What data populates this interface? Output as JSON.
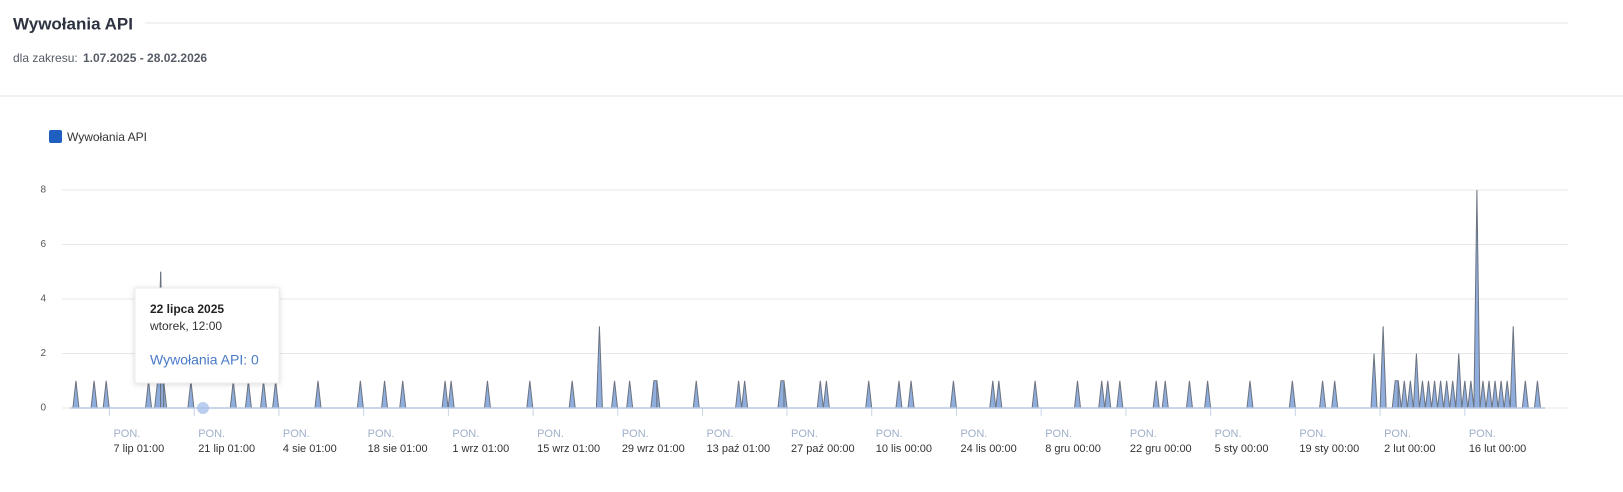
{
  "header": {
    "title": "Wywołania API",
    "range_label": "dla zakresu:",
    "range": "1.07.2025 - 28.02.2026"
  },
  "chart_data": {
    "type": "area",
    "x": [
      "2025-07-01T12:00",
      "2025-07-04T12:00",
      "2025-07-06T12:00",
      "2025-07-13T12:00",
      "2025-07-15T00:00",
      "2025-07-15T12:00",
      "2025-07-16T00:00",
      "2025-07-20T12:00",
      "2025-07-27T12:00",
      "2025-07-30T00:00",
      "2025-08-01T12:00",
      "2025-08-03T12:00",
      "2025-08-10T12:00",
      "2025-08-17T12:00",
      "2025-08-21T12:00",
      "2025-08-24T12:00",
      "2025-08-31T12:00",
      "2025-09-01T12:00",
      "2025-09-07T12:00",
      "2025-09-14T12:00",
      "2025-09-21T12:00",
      "2025-09-26T00:00",
      "2025-09-28T12:00",
      "2025-10-01T00:00",
      "2025-10-05T00:00",
      "2025-10-05T12:00",
      "2025-10-12T00:00",
      "2025-10-19T00:00",
      "2025-10-20T00:00",
      "2025-10-26T00:00",
      "2025-10-26T12:00",
      "2025-11-01T12:00",
      "2025-11-02T12:00",
      "2025-11-09T12:00",
      "2025-11-14T12:00",
      "2025-11-16T12:00",
      "2025-11-23T12:00",
      "2025-11-30T00:00",
      "2025-12-01T00:00",
      "2025-12-07T00:00",
      "2025-12-14T00:00",
      "2025-12-18T00:00",
      "2025-12-19T00:00",
      "2025-12-21T00:00",
      "2025-12-27T00:00",
      "2025-12-28T12:00",
      "2026-01-01T12:00",
      "2026-01-04T12:00",
      "2026-01-11T12:00",
      "2026-01-18T12:00",
      "2026-01-23T12:00",
      "2026-01-25T12:00",
      "2026-02-01T00:00",
      "2026-02-02T12:00",
      "2026-02-04T12:00",
      "2026-02-05T00:00",
      "2026-02-06T00:00",
      "2026-02-07T00:00",
      "2026-02-08T00:00",
      "2026-02-09T00:00",
      "2026-02-10T00:00",
      "2026-02-11T00:00",
      "2026-02-12T00:00",
      "2026-02-13T00:00",
      "2026-02-14T00:00",
      "2026-02-15T00:00",
      "2026-02-16T00:00",
      "2026-02-17T00:00",
      "2026-02-18T00:00",
      "2026-02-19T00:00",
      "2026-02-20T00:00",
      "2026-02-21T00:00",
      "2026-02-22T00:00",
      "2026-02-23T00:00",
      "2026-02-24T00:00",
      "2026-02-26T00:00",
      "2026-02-28T00:00"
    ],
    "series": [
      {
        "name": "Wywołania API",
        "color": "#1f5fbf",
        "fill": "#8aaadb",
        "line": "#6b7380",
        "values": [
          1,
          1,
          1,
          1,
          1,
          5,
          1,
          1,
          1,
          1,
          1,
          1,
          1,
          1,
          1,
          1,
          1,
          1,
          1,
          1,
          1,
          3,
          1,
          1,
          1,
          1,
          1,
          1,
          1,
          1,
          1,
          1,
          1,
          1,
          1,
          1,
          1,
          1,
          1,
          1,
          1,
          1,
          1,
          1,
          1,
          1,
          1,
          1,
          1,
          1,
          1,
          1,
          2,
          3,
          1,
          1,
          1,
          1,
          2,
          1,
          1,
          1,
          1,
          1,
          1,
          2,
          1,
          1,
          8,
          1,
          1,
          1,
          1,
          1,
          3,
          1,
          1
        ]
      }
    ],
    "xlim": [
      "2025-07-01T00:00",
      "2026-03-01T06:00"
    ],
    "xticks": [
      {
        "value": "2025-07-07T01:00",
        "label": "7 lip 01:00"
      },
      {
        "value": "2025-07-21T01:00",
        "label": "21 lip 01:00"
      },
      {
        "value": "2025-08-04T01:00",
        "label": "4 sie 01:00"
      },
      {
        "value": "2025-08-18T01:00",
        "label": "18 sie 01:00"
      },
      {
        "value": "2025-09-01T01:00",
        "label": "1 wrz 01:00"
      },
      {
        "value": "2025-09-15T01:00",
        "label": "15 wrz 01:00"
      },
      {
        "value": "2025-09-29T01:00",
        "label": "29 wrz 01:00"
      },
      {
        "value": "2025-10-13T01:00",
        "label": "13 paź 01:00"
      },
      {
        "value": "2025-10-27T00:00",
        "label": "27 paź 00:00"
      },
      {
        "value": "2025-11-10T00:00",
        "label": "10 lis 00:00"
      },
      {
        "value": "2025-11-24T00:00",
        "label": "24 lis 00:00"
      },
      {
        "value": "2025-12-08T00:00",
        "label": "8 gru 00:00"
      },
      {
        "value": "2025-12-22T00:00",
        "label": "22 gru 00:00"
      },
      {
        "value": "2026-01-05T00:00",
        "label": "5 sty 00:00"
      },
      {
        "value": "2026-01-19T00:00",
        "label": "19 sty 00:00"
      },
      {
        "value": "2026-02-02T00:00",
        "label": "2 lut 00:00"
      },
      {
        "value": "2026-02-16T00:00",
        "label": "16 lut 00:00"
      }
    ],
    "xtick_weekday": "PON.",
    "ylim": [
      0,
      8
    ],
    "yticks": [
      0,
      2,
      4,
      6,
      8
    ],
    "grid": true,
    "tooltip": {
      "x": "2025-07-22T12:00",
      "value": 0,
      "title": "22 lipca 2025",
      "subtitle": "wtorek, 12:00",
      "label": "Wywołania API: 0"
    }
  }
}
